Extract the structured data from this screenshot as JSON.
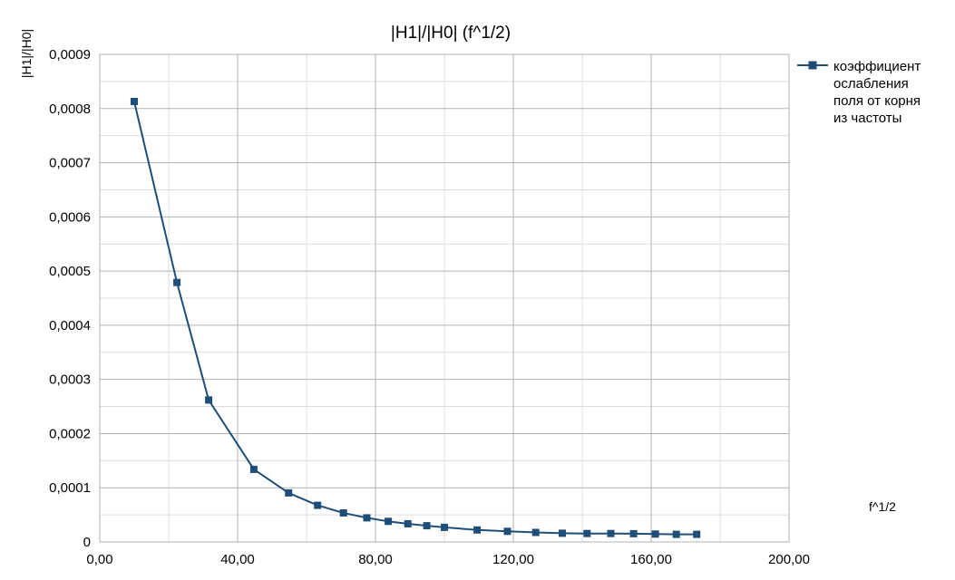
{
  "chart_data": {
    "type": "line",
    "title": "|H1|/|H0| (f^1/2)",
    "xlabel": "f^1/2",
    "ylabel": "|H1|/|H0|",
    "xlim": [
      0,
      200
    ],
    "ylim": [
      0,
      0.0009
    ],
    "x_ticks": [
      "0,00",
      "40,00",
      "80,00",
      "120,00",
      "160,00",
      "200,00"
    ],
    "y_ticks": [
      "0",
      "0,0001",
      "0,0002",
      "0,0003",
      "0,0004",
      "0,0005",
      "0,0006",
      "0,0007",
      "0,0008",
      "0,0009"
    ],
    "grid": true,
    "legend_position": "right",
    "series": [
      {
        "name": "коэффициент ослабления поля от корня из частоты",
        "legend_lines": [
          "коэффициент",
          "ослабления",
          "поля от корня",
          "из частоты"
        ],
        "color": "#1f4e79",
        "marker": "square",
        "x": [
          10.0,
          22.4,
          31.6,
          44.7,
          54.8,
          63.2,
          70.7,
          77.5,
          83.7,
          89.4,
          94.9,
          100.0,
          109.5,
          118.3,
          126.5,
          134.2,
          141.4,
          148.3,
          154.9,
          161.2,
          167.3,
          173.2
        ],
        "y": [
          0.000813,
          0.000479,
          0.000262,
          0.000134,
          9.05e-05,
          6.75e-05,
          5.35e-05,
          4.45e-05,
          3.8e-05,
          3.35e-05,
          3e-05,
          2.7e-05,
          2.2e-05,
          1.95e-05,
          1.75e-05,
          1.6e-05,
          1.55e-05,
          1.55e-05,
          1.52e-05,
          1.45e-05,
          1.4e-05,
          1.4e-05
        ]
      }
    ]
  }
}
